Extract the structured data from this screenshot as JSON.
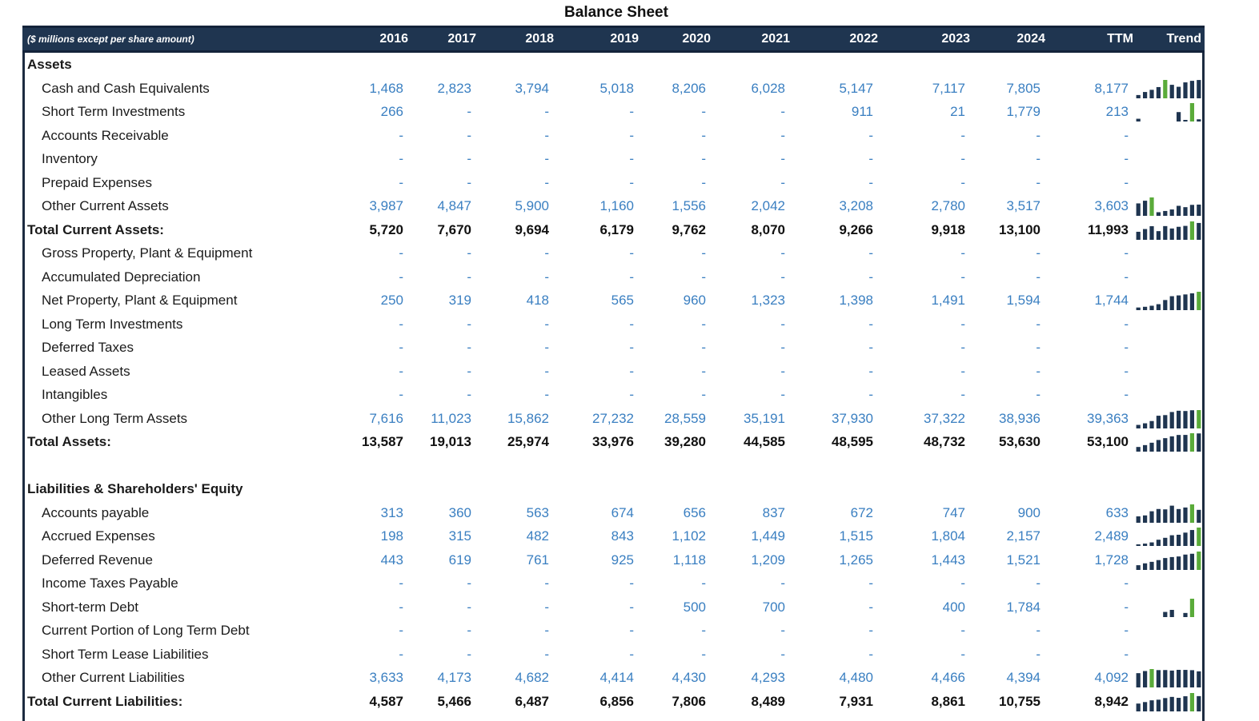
{
  "title": "Balance Sheet",
  "header": {
    "unit_label": "($ millions except per share amount)",
    "columns": [
      "2016",
      "2017",
      "2018",
      "2019",
      "2020",
      "2021",
      "2022",
      "2023",
      "2024",
      "TTM"
    ],
    "trend_label": "Trend"
  },
  "colors": {
    "header_bg": "#1f3550",
    "value_blue": "#3a7fc1",
    "spark_dark": "#1f3550",
    "spark_green": "#5aab3a"
  },
  "rows": [
    {
      "label": "Assets",
      "type": "section"
    },
    {
      "label": "Cash and Cash Equivalents",
      "type": "item",
      "values": [
        "1,468",
        "2,823",
        "3,794",
        "5,018",
        "8,206",
        "6,028",
        "5,147",
        "7,117",
        "7,805",
        "8,177"
      ],
      "trend": [
        1468,
        2823,
        3794,
        5018,
        8206,
        6028,
        5147,
        7117,
        7805,
        8177
      ]
    },
    {
      "label": "Short Term Investments",
      "type": "item",
      "values": [
        "266",
        "-",
        "-",
        "-",
        "-",
        "-",
        "911",
        "21",
        "1,779",
        "213"
      ],
      "trend": [
        266,
        0,
        0,
        0,
        0,
        0,
        911,
        21,
        1779,
        213
      ]
    },
    {
      "label": "Accounts Receivable",
      "type": "item",
      "values": [
        "-",
        "-",
        "-",
        "-",
        "-",
        "-",
        "-",
        "-",
        "-",
        "-"
      ]
    },
    {
      "label": "Inventory",
      "type": "item",
      "values": [
        "-",
        "-",
        "-",
        "-",
        "-",
        "-",
        "-",
        "-",
        "-",
        "-"
      ]
    },
    {
      "label": "Prepaid Expenses",
      "type": "item",
      "values": [
        "-",
        "-",
        "-",
        "-",
        "-",
        "-",
        "-",
        "-",
        "-",
        "-"
      ]
    },
    {
      "label": "Other Current Assets",
      "type": "item",
      "values": [
        "3,987",
        "4,847",
        "5,900",
        "1,160",
        "1,556",
        "2,042",
        "3,208",
        "2,780",
        "3,517",
        "3,603"
      ],
      "trend": [
        3987,
        4847,
        5900,
        1160,
        1556,
        2042,
        3208,
        2780,
        3517,
        3603
      ]
    },
    {
      "label": "Total Current Assets:",
      "type": "total",
      "values": [
        "5,720",
        "7,670",
        "9,694",
        "6,179",
        "9,762",
        "8,070",
        "9,266",
        "9,918",
        "13,100",
        "11,993"
      ],
      "trend": [
        5720,
        7670,
        9694,
        6179,
        9762,
        8070,
        9266,
        9918,
        13100,
        11993
      ]
    },
    {
      "label": "Gross Property, Plant & Equipment",
      "type": "item",
      "values": [
        "-",
        "-",
        "-",
        "-",
        "-",
        "-",
        "-",
        "-",
        "-",
        "-"
      ]
    },
    {
      "label": "Accumulated Depreciation",
      "type": "item",
      "values": [
        "-",
        "-",
        "-",
        "-",
        "-",
        "-",
        "-",
        "-",
        "-",
        "-"
      ]
    },
    {
      "label": "Net Property, Plant & Equipment",
      "type": "item",
      "values": [
        "250",
        "319",
        "418",
        "565",
        "960",
        "1,323",
        "1,398",
        "1,491",
        "1,594",
        "1,744"
      ],
      "trend": [
        250,
        319,
        418,
        565,
        960,
        1323,
        1398,
        1491,
        1594,
        1744
      ]
    },
    {
      "label": "Long Term Investments",
      "type": "item",
      "values": [
        "-",
        "-",
        "-",
        "-",
        "-",
        "-",
        "-",
        "-",
        "-",
        "-"
      ]
    },
    {
      "label": "Deferred Taxes",
      "type": "item",
      "values": [
        "-",
        "-",
        "-",
        "-",
        "-",
        "-",
        "-",
        "-",
        "-",
        "-"
      ]
    },
    {
      "label": "Leased Assets",
      "type": "item",
      "values": [
        "-",
        "-",
        "-",
        "-",
        "-",
        "-",
        "-",
        "-",
        "-",
        "-"
      ]
    },
    {
      "label": "Intangibles",
      "type": "item",
      "values": [
        "-",
        "-",
        "-",
        "-",
        "-",
        "-",
        "-",
        "-",
        "-",
        "-"
      ]
    },
    {
      "label": "Other Long Term Assets",
      "type": "item",
      "values": [
        "7,616",
        "11,023",
        "15,862",
        "27,232",
        "28,559",
        "35,191",
        "37,930",
        "37,322",
        "38,936",
        "39,363"
      ],
      "trend": [
        7616,
        11023,
        15862,
        27232,
        28559,
        35191,
        37930,
        37322,
        38936,
        39363
      ]
    },
    {
      "label": "Total Assets:",
      "type": "total",
      "values": [
        "13,587",
        "19,013",
        "25,974",
        "33,976",
        "39,280",
        "44,585",
        "48,595",
        "48,732",
        "53,630",
        "53,100"
      ],
      "trend": [
        13587,
        19013,
        25974,
        33976,
        39280,
        44585,
        48595,
        48732,
        53630,
        53100
      ]
    },
    {
      "label": "",
      "type": "blank"
    },
    {
      "label": "Liabilities & Shareholders' Equity",
      "type": "section"
    },
    {
      "label": "Accounts payable",
      "type": "item",
      "values": [
        "313",
        "360",
        "563",
        "674",
        "656",
        "837",
        "672",
        "747",
        "900",
        "633"
      ],
      "trend": [
        313,
        360,
        563,
        674,
        656,
        837,
        672,
        747,
        900,
        633
      ]
    },
    {
      "label": "Accrued Expenses",
      "type": "item",
      "values": [
        "198",
        "315",
        "482",
        "843",
        "1,102",
        "1,449",
        "1,515",
        "1,804",
        "2,157",
        "2,489"
      ],
      "trend": [
        198,
        315,
        482,
        843,
        1102,
        1449,
        1515,
        1804,
        2157,
        2489
      ]
    },
    {
      "label": "Deferred Revenue",
      "type": "item",
      "values": [
        "443",
        "619",
        "761",
        "925",
        "1,118",
        "1,209",
        "1,265",
        "1,443",
        "1,521",
        "1,728"
      ],
      "trend": [
        443,
        619,
        761,
        925,
        1118,
        1209,
        1265,
        1443,
        1521,
        1728
      ]
    },
    {
      "label": "Income Taxes Payable",
      "type": "item",
      "values": [
        "-",
        "-",
        "-",
        "-",
        "-",
        "-",
        "-",
        "-",
        "-",
        "-"
      ]
    },
    {
      "label": "Short-term Debt",
      "type": "item",
      "values": [
        "-",
        "-",
        "-",
        "-",
        "500",
        "700",
        "-",
        "400",
        "1,784",
        "-"
      ],
      "trend": [
        0,
        0,
        0,
        0,
        500,
        700,
        0,
        400,
        1784,
        0
      ]
    },
    {
      "label": "Current Portion of Long Term Debt",
      "type": "item",
      "values": [
        "-",
        "-",
        "-",
        "-",
        "-",
        "-",
        "-",
        "-",
        "-",
        "-"
      ]
    },
    {
      "label": "Short Term Lease Liabilities",
      "type": "item",
      "values": [
        "-",
        "-",
        "-",
        "-",
        "-",
        "-",
        "-",
        "-",
        "-",
        "-"
      ]
    },
    {
      "label": "Other Current Liabilities",
      "type": "item",
      "values": [
        "3,633",
        "4,173",
        "4,682",
        "4,414",
        "4,430",
        "4,293",
        "4,480",
        "4,466",
        "4,394",
        "4,092"
      ],
      "trend": [
        3633,
        4173,
        4682,
        4414,
        4430,
        4293,
        4480,
        4466,
        4394,
        4092
      ]
    },
    {
      "label": "Total Current Liabilities:",
      "type": "total",
      "values": [
        "4,587",
        "5,466",
        "6,487",
        "6,856",
        "7,806",
        "8,489",
        "7,931",
        "8,861",
        "10,755",
        "8,942"
      ],
      "trend": [
        4587,
        5466,
        6487,
        6856,
        7806,
        8489,
        7931,
        8861,
        10755,
        8942
      ]
    }
  ]
}
